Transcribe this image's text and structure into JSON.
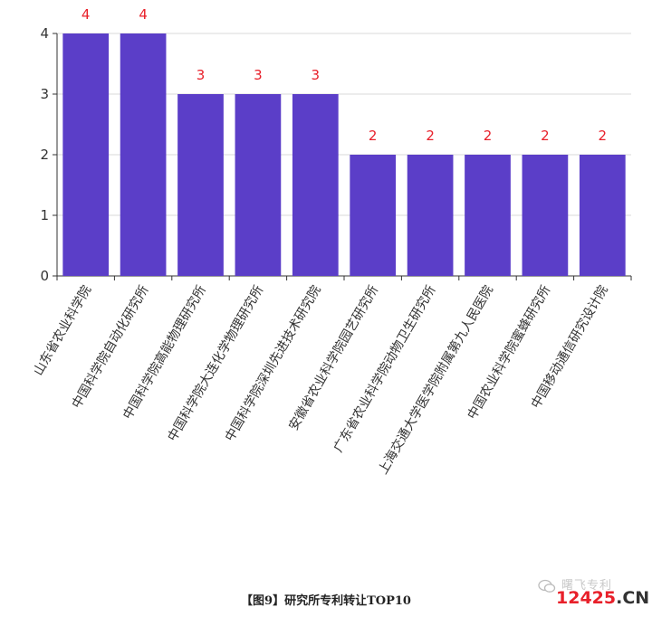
{
  "chart_data": {
    "type": "bar",
    "categories": [
      "山东省农业科学院",
      "中国科学院自动化研究所",
      "中国科学院高能物理研究所",
      "中国科学院大连化学物理研究所",
      "中国科学院深圳先进技术研究院",
      "安徽省农业科学院园艺研究所",
      "广东省农业科学院动物卫生研究所",
      "上海交通大学医学院附属第九人民医院",
      "中国农业科学院蜜蜂研究所",
      "中国移动通信研究设计院"
    ],
    "values": [
      4,
      4,
      3,
      3,
      3,
      2,
      2,
      2,
      2,
      2
    ],
    "ylim": [
      0,
      4
    ],
    "yticks": [
      "0",
      "1",
      "2",
      "3",
      "4"
    ],
    "grid": true,
    "bar_color": "#5b3ec8",
    "label_color": "#e8202a"
  },
  "caption": "【图9】研究所专利转让TOP10",
  "watermark": {
    "sub": "曙飞专利",
    "main_red": "12425",
    "main_dark": ".CN"
  }
}
